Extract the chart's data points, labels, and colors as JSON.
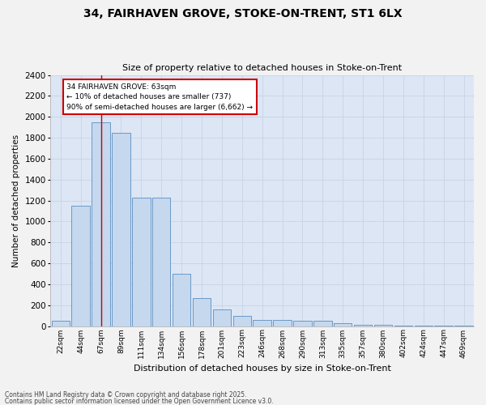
{
  "title_line1": "34, FAIRHAVEN GROVE, STOKE-ON-TRENT, ST1 6LX",
  "title_line2": "Size of property relative to detached houses in Stoke-on-Trent",
  "xlabel": "Distribution of detached houses by size in Stoke-on-Trent",
  "ylabel": "Number of detached properties",
  "annotation_text": "34 FAIRHAVEN GROVE: 63sqm\n← 10% of detached houses are smaller (737)\n90% of semi-detached houses are larger (6,662) →",
  "footer_line1": "Contains HM Land Registry data © Crown copyright and database right 2025.",
  "footer_line2": "Contains public sector information licensed under the Open Government Licence v3.0.",
  "categories": [
    "22sqm",
    "44sqm",
    "67sqm",
    "89sqm",
    "111sqm",
    "134sqm",
    "156sqm",
    "178sqm",
    "201sqm",
    "223sqm",
    "246sqm",
    "268sqm",
    "290sqm",
    "313sqm",
    "335sqm",
    "357sqm",
    "380sqm",
    "402sqm",
    "424sqm",
    "447sqm",
    "469sqm"
  ],
  "values": [
    50,
    1150,
    1950,
    1850,
    1230,
    1230,
    500,
    270,
    155,
    100,
    55,
    55,
    50,
    50,
    30,
    10,
    10,
    5,
    5,
    3,
    2
  ],
  "bar_color": "#c5d8ee",
  "bar_edge_color": "#5a8fc0",
  "marker_index": 2,
  "marker_color": "#cc0000",
  "annotation_box_edge": "#cc0000",
  "grid_color": "#c8d4e4",
  "bg_color": "#dce6f5",
  "fig_bg_color": "#f2f2f2",
  "ylim": [
    0,
    2400
  ],
  "yticks": [
    0,
    200,
    400,
    600,
    800,
    1000,
    1200,
    1400,
    1600,
    1800,
    2000,
    2200,
    2400
  ]
}
